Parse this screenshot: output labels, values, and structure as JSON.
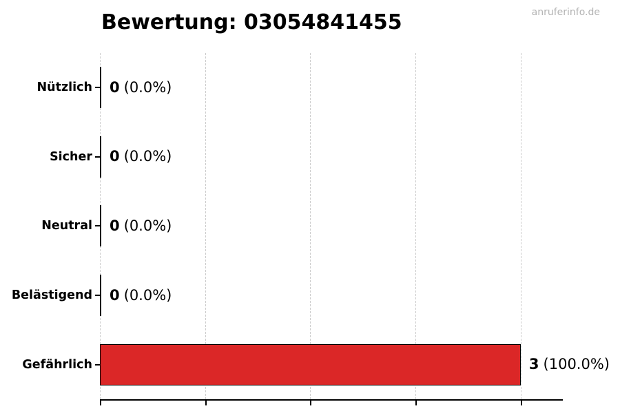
{
  "title": "Bewertung: 03054841455",
  "watermark": "anruferinfo.de",
  "colors": {
    "bar_fill": "#db2727",
    "bar_edge": "#000000",
    "grid": "#cccccc",
    "axis": "#000000",
    "watermark": "#b2b2b2",
    "text": "#000000"
  },
  "chart_data": {
    "type": "bar",
    "orientation": "horizontal",
    "title": "Bewertung: 03054841455",
    "categories": [
      "Nützlich",
      "Sicher",
      "Neutral",
      "Belästigend",
      "Gefährlich"
    ],
    "values": [
      0,
      0,
      0,
      0,
      3
    ],
    "percentages": [
      0.0,
      0.0,
      0.0,
      0.0,
      100.0
    ],
    "xlabel": "",
    "ylabel": "",
    "xlim": [
      0,
      3.3
    ],
    "x_ticks": [
      0,
      0.75,
      1.5,
      2.25,
      3
    ],
    "x_tick_labels": [
      "",
      "",
      "",
      "",
      ""
    ],
    "grid": true,
    "legend": false,
    "rows": [
      {
        "label": "Nützlich",
        "count": "0",
        "pct_text": "(0.0%)",
        "value": 0
      },
      {
        "label": "Sicher",
        "count": "0",
        "pct_text": "(0.0%)",
        "value": 0
      },
      {
        "label": "Neutral",
        "count": "0",
        "pct_text": "(0.0%)",
        "value": 0
      },
      {
        "label": "Belästigend",
        "count": "0",
        "pct_text": "(0.0%)",
        "value": 0
      },
      {
        "label": "Gefährlich",
        "count": "3",
        "pct_text": "(100.0%)",
        "value": 3
      }
    ]
  }
}
